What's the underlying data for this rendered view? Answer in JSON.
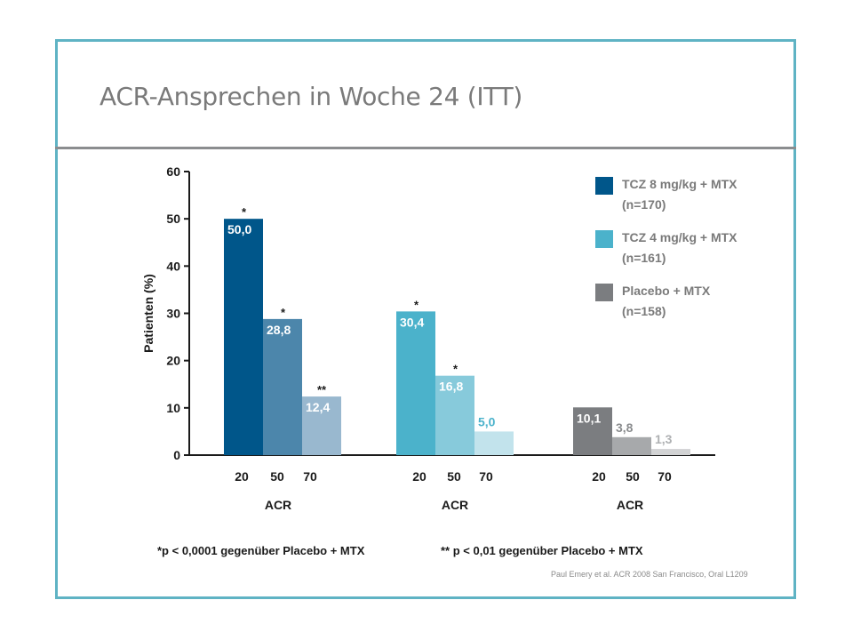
{
  "slide": {
    "title": "ACR-Ansprechen in Woche 24 (ITT)",
    "footnote_left": "*p < 0,0001 gegenüber Placebo + MTX",
    "footnote_right": "** p < 0,01 gegenüber Placebo + MTX",
    "source": "Paul Emery et al. ACR 2008 San Francisco, Oral L1209"
  },
  "chart_data": {
    "type": "bar",
    "title": "",
    "ylabel": "Patienten (%)",
    "xlabel": "ACR",
    "ylim": [
      0,
      60
    ],
    "yticks": [
      0,
      10,
      20,
      30,
      40,
      50,
      60
    ],
    "categories": [
      "20",
      "50",
      "70"
    ],
    "legend_position": "right",
    "series": [
      {
        "name": "TCZ 8 mg/kg + MTX",
        "n": "(n=170)",
        "colors": [
          "#00568a",
          "#4c86ab",
          "#99b8cf"
        ],
        "legend_color": "#00568a",
        "values": [
          50.0,
          28.8,
          12.4
        ],
        "labels": [
          "50,0",
          "28,8",
          "12,4"
        ],
        "label_colors": [
          "#ffffff",
          "#ffffff",
          "#ffffff"
        ],
        "label_inside": [
          true,
          true,
          true
        ],
        "significance": [
          "*",
          "*",
          "**"
        ],
        "group_label": "ACR"
      },
      {
        "name": "TCZ 4 mg/kg + MTX",
        "n": "(n=161)",
        "colors": [
          "#4bb2cb",
          "#87cadb",
          "#c2e3ec"
        ],
        "legend_color": "#4bb2cb",
        "values": [
          30.4,
          16.8,
          5.0
        ],
        "labels": [
          "30,4",
          "16,8",
          "5,0"
        ],
        "label_colors": [
          "#ffffff",
          "#ffffff",
          "#4bb2cb"
        ],
        "label_inside": [
          true,
          true,
          false
        ],
        "significance": [
          "*",
          "*",
          ""
        ],
        "group_label": "ACR"
      },
      {
        "name": "Placebo + MTX",
        "n": "(n=158)",
        "colors": [
          "#7b7d80",
          "#a7a9ab",
          "#d2d3d4"
        ],
        "legend_color": "#7b7d80",
        "values": [
          10.1,
          3.8,
          1.3
        ],
        "labels": [
          "10,1",
          "3,8",
          "1,3"
        ],
        "label_colors": [
          "#ffffff",
          "#8a8c8e",
          "#aeb0b2"
        ],
        "label_inside": [
          true,
          false,
          false
        ],
        "significance": [
          "",
          "",
          ""
        ],
        "group_label": "ACR"
      }
    ]
  }
}
